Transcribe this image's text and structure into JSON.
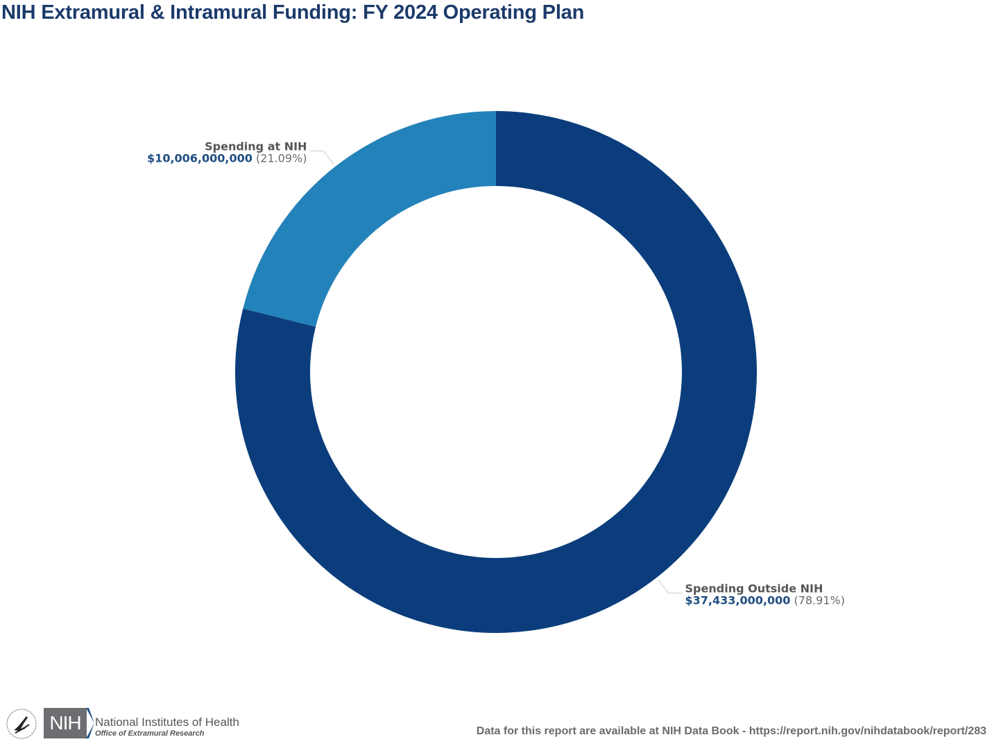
{
  "title": "NIH Extramural & Intramural Funding: FY 2024 Operating Plan",
  "chart_data": {
    "type": "pie",
    "variant": "donut",
    "title": "NIH Extramural & Intramural Funding: FY 2024 Operating Plan",
    "slices": [
      {
        "name": "Spending Outside NIH",
        "value": 37433000000,
        "value_label": "$37,433,000,000",
        "percent": 78.91,
        "percent_label": "(78.91%)",
        "color": "#0b3d7c"
      },
      {
        "name": "Spending at NIH",
        "value": 10006000000,
        "value_label": "$10,006,000,000",
        "percent": 21.09,
        "percent_label": "(21.09%)",
        "color": "#2382b9"
      }
    ],
    "label_name_color": "#555555",
    "label_value_color": "#1f4e82",
    "label_percent_color": "#6a6a6a"
  },
  "footer": {
    "source_text": "Data for this report are available at NIH Data Book - https://report.nih.gov/nihdatabook/report/283",
    "logo_short": "NIH",
    "institute_name": "National Institutes of Health",
    "office_name": "Office of Extramural Research"
  }
}
